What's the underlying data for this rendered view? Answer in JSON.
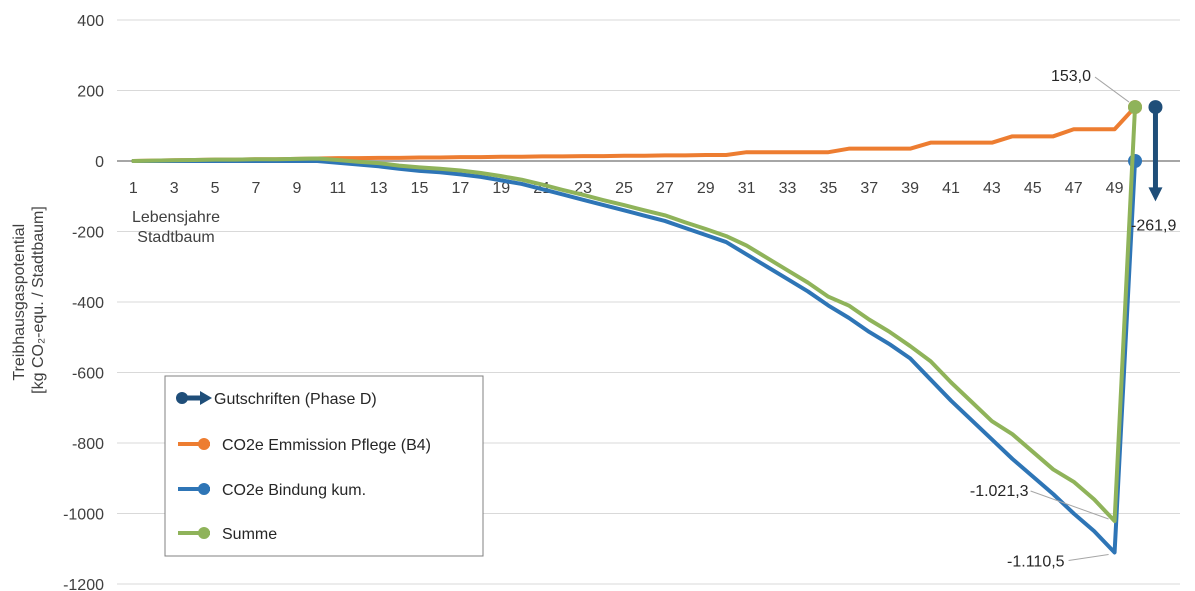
{
  "chart_data": {
    "type": "line",
    "ylabel_line1": "Treibhausgaspotential",
    "ylabel_line2": "[kg CO₂-equ. / Stadtbaum]",
    "xlabel_line1": "Lebensjahre",
    "xlabel_line2": "Stadtbaum",
    "ylim": [
      -1200,
      400
    ],
    "yticks": [
      "400",
      "200",
      "0",
      "-200",
      "-400",
      "-600",
      "-800",
      "-1000",
      "-1200"
    ],
    "xticks": [
      "1",
      "3",
      "5",
      "7",
      "9",
      "11",
      "13",
      "15",
      "17",
      "19",
      "21",
      "23",
      "25",
      "27",
      "29",
      "31",
      "33",
      "35",
      "37",
      "39",
      "41",
      "43",
      "45",
      "47",
      "49"
    ],
    "grid": "horizontal",
    "legend_placement": "bottom-left",
    "series": [
      {
        "name": "CO2e Emmission Pflege (B4)",
        "color": "#ED7D31",
        "x": [
          1,
          2,
          3,
          4,
          5,
          6,
          7,
          8,
          9,
          10,
          11,
          12,
          13,
          14,
          15,
          16,
          17,
          18,
          19,
          20,
          21,
          22,
          23,
          24,
          25,
          26,
          27,
          28,
          29,
          30,
          31,
          32,
          33,
          34,
          35,
          36,
          37,
          38,
          39,
          40,
          41,
          42,
          43,
          44,
          45,
          46,
          47,
          48,
          49,
          50
        ],
        "y": [
          0,
          1,
          2,
          3,
          4,
          4,
          5,
          5,
          6,
          7,
          8,
          8,
          9,
          9,
          10,
          10,
          11,
          11,
          12,
          12,
          13,
          13,
          14,
          14,
          15,
          15,
          16,
          16,
          17,
          17,
          25,
          25,
          25,
          25,
          25,
          35,
          35,
          35,
          35,
          52,
          52,
          52,
          52,
          70,
          70,
          70,
          90,
          90,
          90,
          153
        ]
      },
      {
        "name": "CO2e Bindung kum.",
        "color": "#2E75B6",
        "x": [
          1,
          2,
          3,
          4,
          5,
          6,
          7,
          8,
          9,
          10,
          11,
          12,
          13,
          14,
          15,
          16,
          17,
          18,
          19,
          20,
          21,
          22,
          23,
          24,
          25,
          26,
          27,
          28,
          29,
          30,
          31,
          32,
          33,
          34,
          35,
          36,
          37,
          38,
          39,
          40,
          41,
          42,
          43,
          44,
          45,
          46,
          47,
          48,
          49,
          50
        ],
        "y": [
          0,
          0,
          0,
          0,
          0,
          0,
          0,
          0,
          0,
          0,
          -5,
          -10,
          -15,
          -22,
          -28,
          -32,
          -38,
          -45,
          -55,
          -65,
          -80,
          -95,
          -110,
          -125,
          -140,
          -155,
          -170,
          -190,
          -210,
          -230,
          -265,
          -300,
          -335,
          -370,
          -410,
          -445,
          -485,
          -520,
          -560,
          -620,
          -680,
          -735,
          -790,
          -845,
          -895,
          -945,
          -1000,
          -1050,
          -1110.5,
          0
        ]
      },
      {
        "name": "Summe",
        "color": "#8FB35A",
        "x": [
          1,
          2,
          3,
          4,
          5,
          6,
          7,
          8,
          9,
          10,
          11,
          12,
          13,
          14,
          15,
          16,
          17,
          18,
          19,
          20,
          21,
          22,
          23,
          24,
          25,
          26,
          27,
          28,
          29,
          30,
          31,
          32,
          33,
          34,
          35,
          36,
          37,
          38,
          39,
          40,
          41,
          42,
          43,
          44,
          45,
          46,
          47,
          48,
          49,
          50
        ],
        "y": [
          0,
          1,
          2,
          3,
          4,
          4,
          5,
          5,
          6,
          7,
          3,
          -2,
          -6,
          -13,
          -18,
          -22,
          -27,
          -34,
          -43,
          -53,
          -67,
          -82,
          -96,
          -111,
          -125,
          -140,
          -154,
          -174,
          -193,
          -213,
          -240,
          -275,
          -310,
          -345,
          -385,
          -410,
          -450,
          -485,
          -525,
          -568,
          -628,
          -683,
          -738,
          -775,
          -825,
          -875,
          -910,
          -960,
          -1021.3,
          153
        ]
      }
    ],
    "gutschrift": {
      "name": "Gutschriften (Phase D)",
      "color": "#1F4E79",
      "x": 51,
      "from": 153,
      "to": -108.9
    },
    "annotations": [
      {
        "text": "153,0",
        "x": 50,
        "y": 153
      },
      {
        "text": "-261,9",
        "x": 51,
        "y": -108.9
      },
      {
        "text": "-1.021,3",
        "x": 49,
        "y": -1021.3
      },
      {
        "text": "-1.110,5",
        "x": 49,
        "y": -1110.5
      }
    ]
  }
}
